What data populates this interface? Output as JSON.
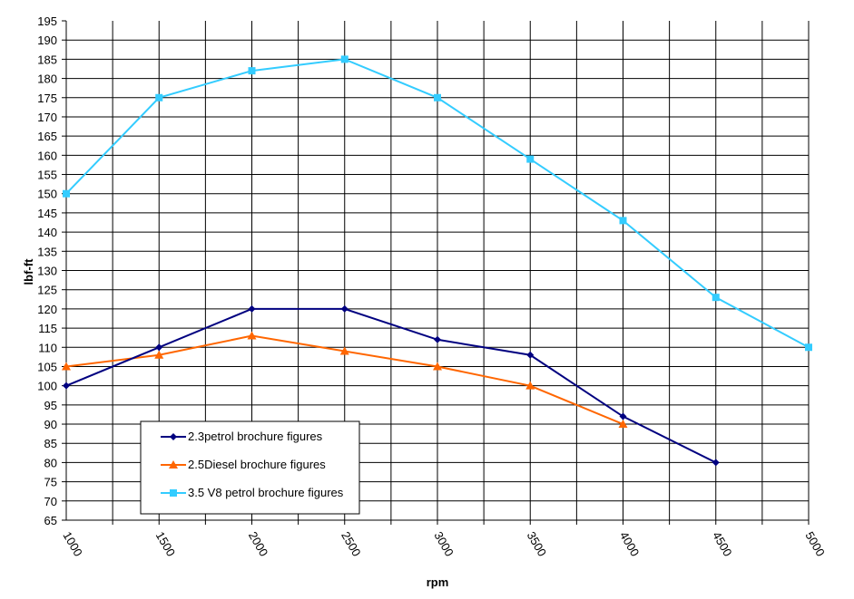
{
  "chart_data": {
    "type": "line",
    "title": "",
    "xlabel": "rpm",
    "ylabel": "lbf-ft",
    "x": [
      1000,
      1500,
      2000,
      2500,
      3000,
      3500,
      4000,
      4500,
      5000
    ],
    "x_tick_labels": [
      "1000",
      "1500",
      "2000",
      "2500",
      "3000",
      "3500",
      "4000",
      "4500",
      "5000"
    ],
    "xlim": [
      1000,
      5000
    ],
    "ylim": [
      65,
      195
    ],
    "y_tick_step": 5,
    "grid": true,
    "legend_position": "bottom-left",
    "series": [
      {
        "name": "2.3petrol brochure figures",
        "color": "#000080",
        "marker": "diamond",
        "values": [
          100,
          110,
          120,
          120,
          112,
          108,
          92,
          80,
          null
        ]
      },
      {
        "name": "2.5Diesel brochure figures",
        "color": "#FF6600",
        "marker": "triangle",
        "values": [
          105,
          108,
          113,
          109,
          105,
          100,
          90,
          null,
          null
        ]
      },
      {
        "name": "3.5 V8 petrol brochure figures",
        "color": "#33CCFF",
        "marker": "square",
        "values": [
          150,
          175,
          182,
          185,
          175,
          159,
          143,
          123,
          110
        ]
      }
    ]
  }
}
